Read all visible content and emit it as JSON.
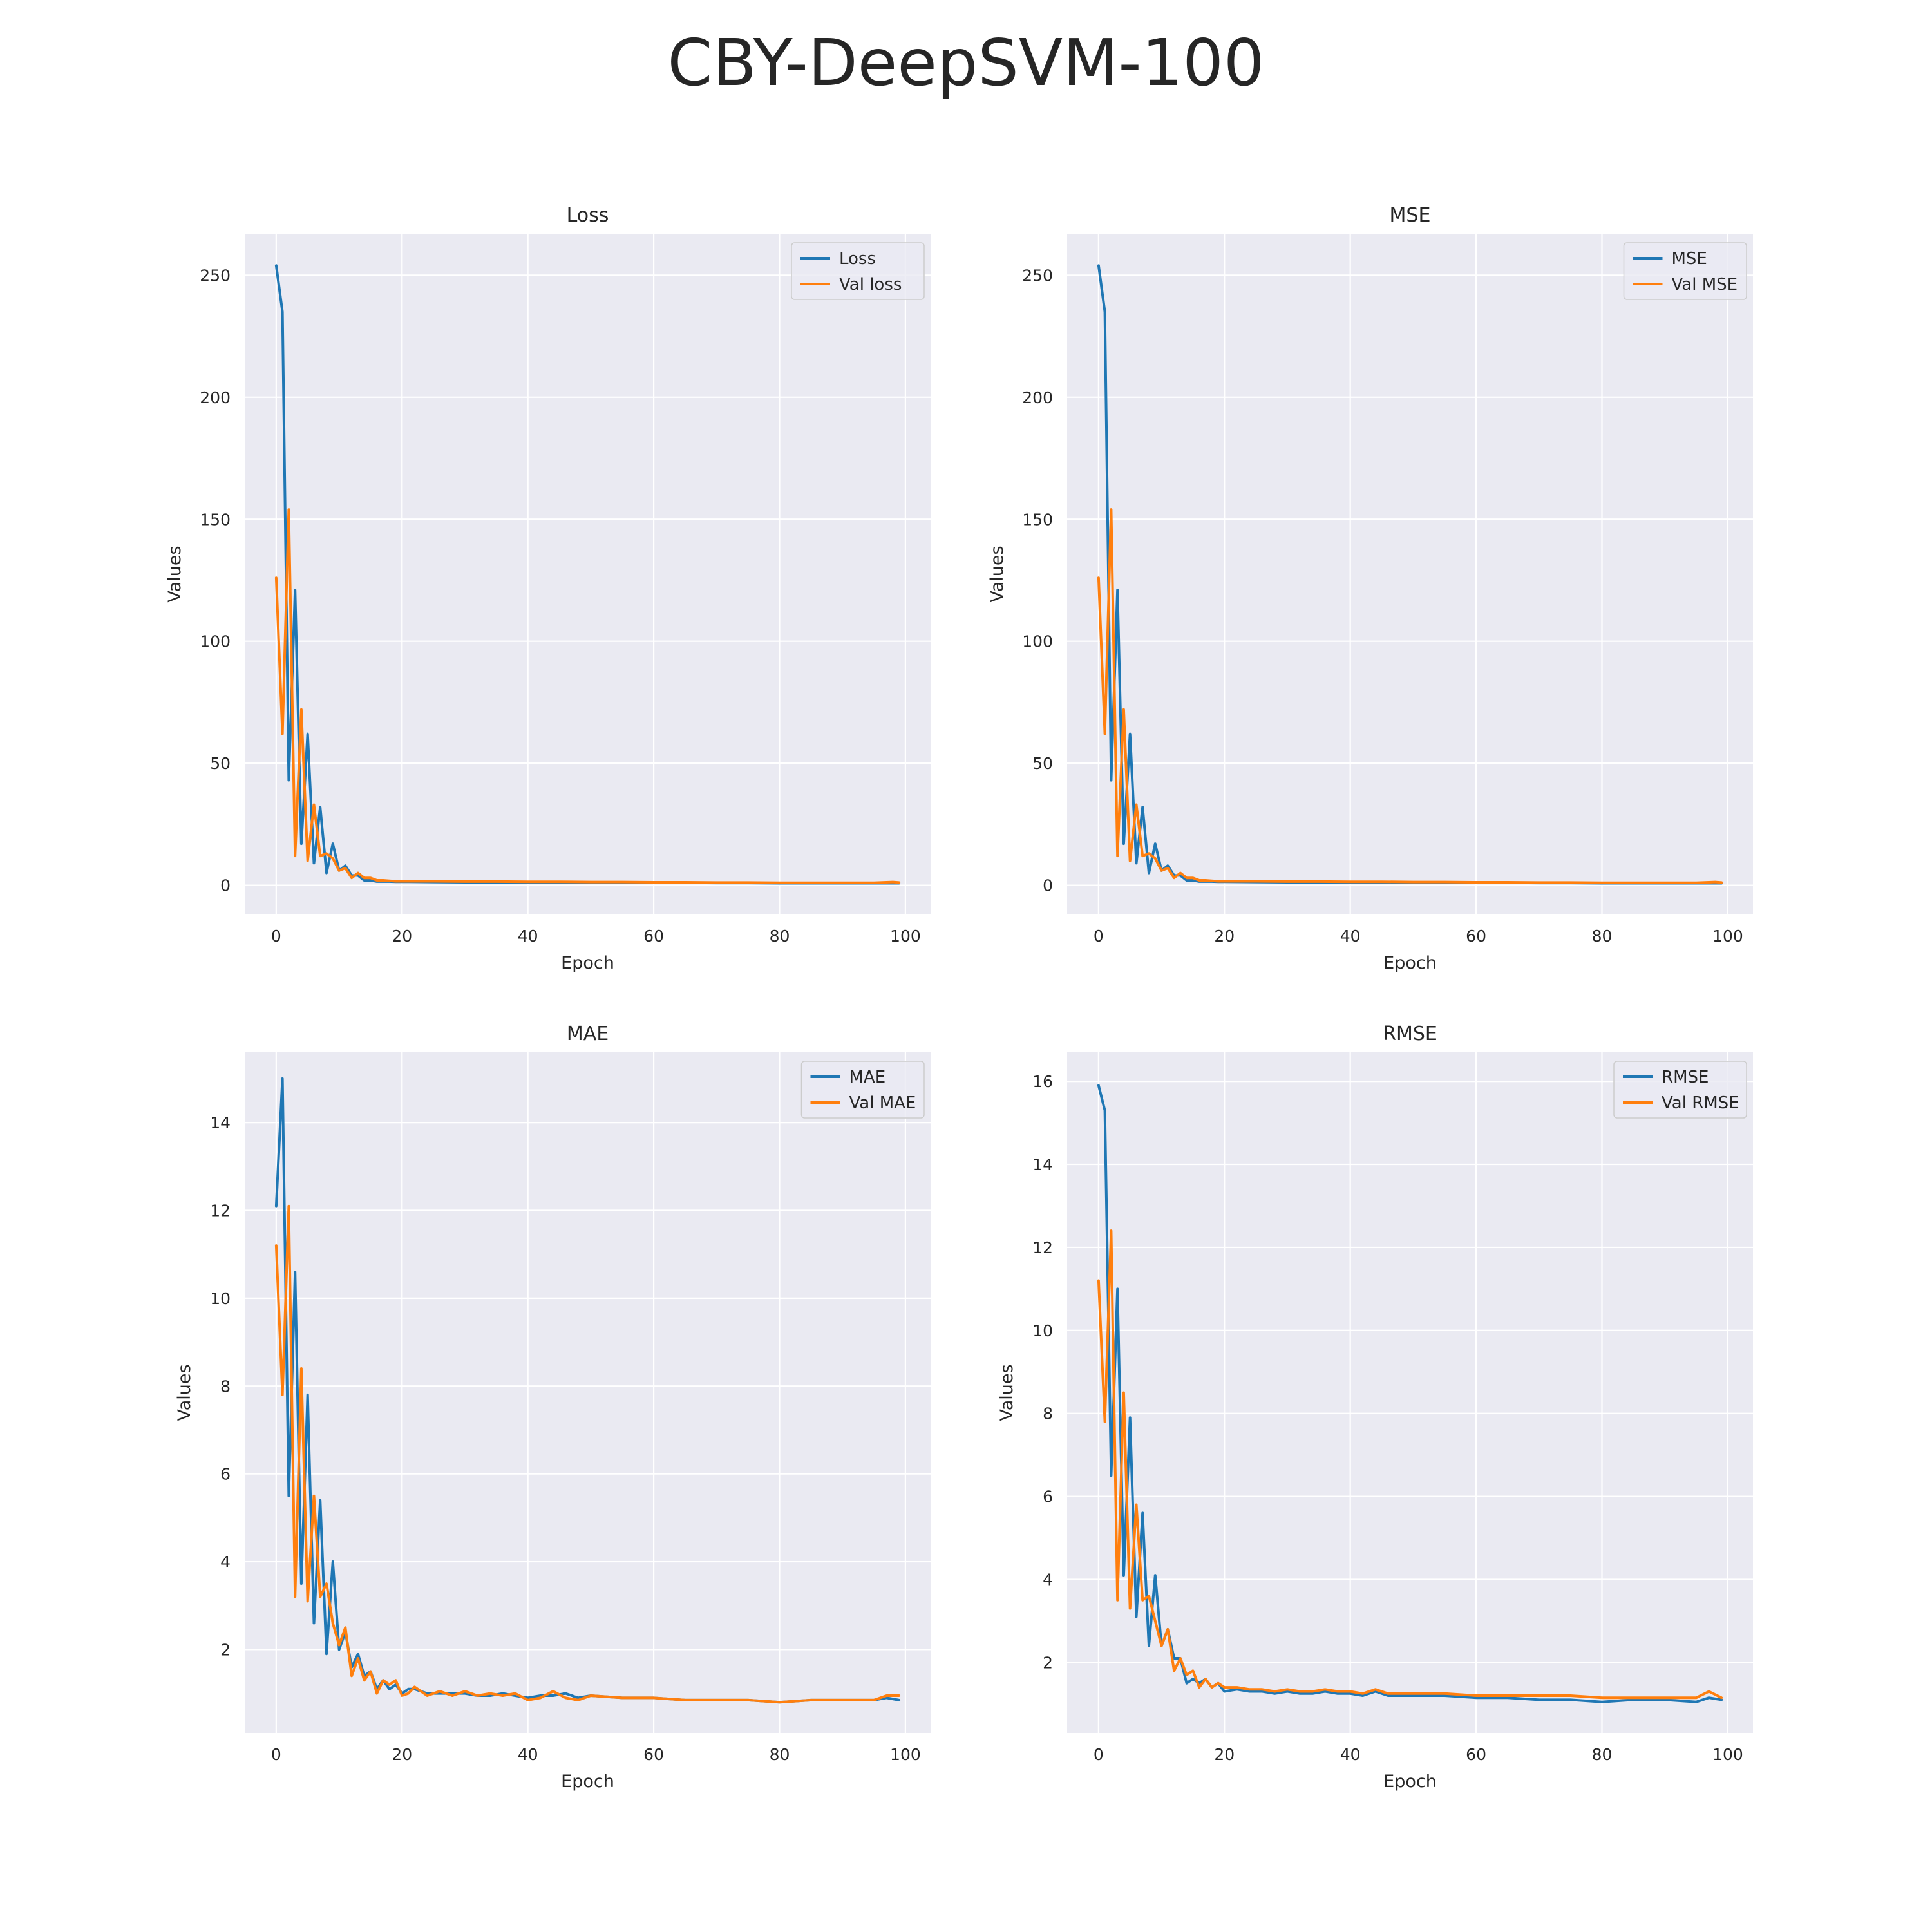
{
  "suptitle": "CBY-DeepSVM-100",
  "colors": {
    "train": "#1f77b4",
    "val": "#ff7f0e",
    "plot_bg": "#eaeaf2",
    "grid": "#ffffff"
  },
  "chart_data": [
    {
      "type": "line",
      "title": "Loss",
      "xlabel": "Epoch",
      "ylabel": "Values",
      "xlim": [
        -5,
        104
      ],
      "ylim": [
        -12,
        267
      ],
      "xticks": [
        0,
        20,
        40,
        60,
        80,
        100
      ],
      "yticks": [
        0,
        50,
        100,
        150,
        200,
        250
      ],
      "legend": "upper-right",
      "grid": true,
      "series": [
        {
          "name": "Loss",
          "color": "#1f77b4",
          "x": [
            0,
            1,
            2,
            3,
            4,
            5,
            6,
            7,
            8,
            9,
            10,
            11,
            12,
            13,
            14,
            15,
            16,
            17,
            18,
            19,
            20,
            25,
            30,
            35,
            40,
            45,
            50,
            55,
            60,
            65,
            70,
            75,
            80,
            85,
            90,
            95,
            99
          ],
          "y": [
            254,
            235,
            43,
            121,
            17,
            62,
            9,
            32,
            5,
            17,
            6,
            8,
            4,
            4,
            2,
            2,
            1.5,
            1.5,
            1.5,
            1.4,
            1.4,
            1.3,
            1.2,
            1.2,
            1.1,
            1.1,
            1.1,
            1.0,
            1.0,
            1.0,
            0.9,
            0.9,
            0.8,
            0.8,
            0.8,
            0.8,
            0.8
          ]
        },
        {
          "name": "Val loss",
          "color": "#ff7f0e",
          "x": [
            0,
            1,
            2,
            3,
            4,
            5,
            6,
            7,
            8,
            9,
            10,
            11,
            12,
            13,
            14,
            15,
            16,
            17,
            18,
            19,
            20,
            25,
            30,
            35,
            40,
            45,
            50,
            55,
            60,
            65,
            70,
            75,
            80,
            85,
            90,
            95,
            98,
            99
          ],
          "y": [
            126,
            62,
            154,
            12,
            72,
            10,
            33,
            12,
            13,
            11,
            6,
            7,
            3,
            5,
            3,
            3,
            2,
            2,
            1.8,
            1.6,
            1.6,
            1.6,
            1.5,
            1.5,
            1.4,
            1.4,
            1.3,
            1.3,
            1.2,
            1.2,
            1.1,
            1.1,
            1.0,
            1.0,
            1.0,
            1.0,
            1.3,
            1.1
          ]
        }
      ]
    },
    {
      "type": "line",
      "title": "MSE",
      "xlabel": "Epoch",
      "ylabel": "Values",
      "xlim": [
        -5,
        104
      ],
      "ylim": [
        -12,
        267
      ],
      "xticks": [
        0,
        20,
        40,
        60,
        80,
        100
      ],
      "yticks": [
        0,
        50,
        100,
        150,
        200,
        250
      ],
      "legend": "upper-right",
      "grid": true,
      "series": [
        {
          "name": "MSE",
          "color": "#1f77b4",
          "x": [
            0,
            1,
            2,
            3,
            4,
            5,
            6,
            7,
            8,
            9,
            10,
            11,
            12,
            13,
            14,
            15,
            16,
            17,
            18,
            19,
            20,
            25,
            30,
            35,
            40,
            45,
            50,
            55,
            60,
            65,
            70,
            75,
            80,
            85,
            90,
            95,
            99
          ],
          "y": [
            254,
            235,
            43,
            121,
            17,
            62,
            9,
            32,
            5,
            17,
            6,
            8,
            4,
            4,
            2,
            2,
            1.5,
            1.5,
            1.5,
            1.4,
            1.4,
            1.3,
            1.2,
            1.2,
            1.1,
            1.1,
            1.1,
            1.0,
            1.0,
            1.0,
            0.9,
            0.9,
            0.8,
            0.8,
            0.8,
            0.8,
            0.8
          ]
        },
        {
          "name": "Val MSE",
          "color": "#ff7f0e",
          "x": [
            0,
            1,
            2,
            3,
            4,
            5,
            6,
            7,
            8,
            9,
            10,
            11,
            12,
            13,
            14,
            15,
            16,
            17,
            18,
            19,
            20,
            25,
            30,
            35,
            40,
            45,
            50,
            55,
            60,
            65,
            70,
            75,
            80,
            85,
            90,
            95,
            98,
            99
          ],
          "y": [
            126,
            62,
            154,
            12,
            72,
            10,
            33,
            12,
            13,
            11,
            6,
            7,
            3,
            5,
            3,
            3,
            2,
            2,
            1.8,
            1.6,
            1.6,
            1.6,
            1.5,
            1.5,
            1.4,
            1.4,
            1.3,
            1.3,
            1.2,
            1.2,
            1.1,
            1.1,
            1.0,
            1.0,
            1.0,
            1.0,
            1.3,
            1.1
          ]
        }
      ]
    },
    {
      "type": "line",
      "title": "MAE",
      "xlabel": "Epoch",
      "ylabel": "Values",
      "xlim": [
        -5,
        104
      ],
      "ylim": [
        0.1,
        15.6
      ],
      "xticks": [
        0,
        20,
        40,
        60,
        80,
        100
      ],
      "yticks": [
        2,
        4,
        6,
        8,
        10,
        12,
        14
      ],
      "legend": "upper-right",
      "grid": true,
      "series": [
        {
          "name": "MAE",
          "color": "#1f77b4",
          "x": [
            0,
            1,
            2,
            3,
            4,
            5,
            6,
            7,
            8,
            9,
            10,
            11,
            12,
            13,
            14,
            15,
            16,
            17,
            18,
            19,
            20,
            21,
            22,
            24,
            26,
            28,
            30,
            32,
            34,
            36,
            38,
            40,
            42,
            44,
            46,
            48,
            50,
            55,
            60,
            65,
            70,
            75,
            80,
            85,
            90,
            95,
            97,
            99
          ],
          "y": [
            12.1,
            15.0,
            5.5,
            10.6,
            3.5,
            7.8,
            2.6,
            5.4,
            1.9,
            4.0,
            2.0,
            2.4,
            1.6,
            1.9,
            1.4,
            1.5,
            1.1,
            1.3,
            1.1,
            1.2,
            1.0,
            1.1,
            1.1,
            1.0,
            1.0,
            1.0,
            1.0,
            0.95,
            0.95,
            1.0,
            0.95,
            0.9,
            0.95,
            0.95,
            1.0,
            0.9,
            0.95,
            0.9,
            0.9,
            0.85,
            0.85,
            0.85,
            0.8,
            0.85,
            0.85,
            0.85,
            0.9,
            0.85
          ]
        },
        {
          "name": "Val MAE",
          "color": "#ff7f0e",
          "x": [
            0,
            1,
            2,
            3,
            4,
            5,
            6,
            7,
            8,
            9,
            10,
            11,
            12,
            13,
            14,
            15,
            16,
            17,
            18,
            19,
            20,
            21,
            22,
            24,
            26,
            28,
            30,
            32,
            34,
            36,
            38,
            40,
            42,
            44,
            46,
            48,
            50,
            55,
            60,
            65,
            70,
            75,
            80,
            85,
            90,
            95,
            97,
            99
          ],
          "y": [
            11.2,
            7.8,
            12.1,
            3.2,
            8.4,
            3.1,
            5.5,
            3.2,
            3.5,
            2.6,
            2.1,
            2.5,
            1.4,
            1.8,
            1.3,
            1.5,
            1.0,
            1.3,
            1.2,
            1.3,
            0.95,
            1.0,
            1.15,
            0.95,
            1.05,
            0.95,
            1.05,
            0.95,
            1.0,
            0.95,
            1.0,
            0.85,
            0.9,
            1.05,
            0.9,
            0.85,
            0.95,
            0.9,
            0.9,
            0.85,
            0.85,
            0.85,
            0.8,
            0.85,
            0.85,
            0.85,
            0.95,
            0.95
          ]
        }
      ]
    },
    {
      "type": "line",
      "title": "RMSE",
      "xlabel": "Epoch",
      "ylabel": "Values",
      "xlim": [
        -5,
        104
      ],
      "ylim": [
        0.3,
        16.7
      ],
      "xticks": [
        0,
        20,
        40,
        60,
        80,
        100
      ],
      "yticks": [
        2,
        4,
        6,
        8,
        10,
        12,
        14,
        16
      ],
      "legend": "upper-right",
      "grid": true,
      "series": [
        {
          "name": "RMSE",
          "color": "#1f77b4",
          "x": [
            0,
            1,
            2,
            3,
            4,
            5,
            6,
            7,
            8,
            9,
            10,
            11,
            12,
            13,
            14,
            15,
            16,
            17,
            18,
            19,
            20,
            22,
            24,
            26,
            28,
            30,
            32,
            34,
            36,
            38,
            40,
            42,
            44,
            46,
            48,
            50,
            55,
            60,
            65,
            70,
            75,
            80,
            85,
            90,
            95,
            97,
            99
          ],
          "y": [
            15.9,
            15.3,
            6.5,
            11.0,
            4.1,
            7.9,
            3.1,
            5.6,
            2.4,
            4.1,
            2.4,
            2.8,
            2.1,
            2.1,
            1.5,
            1.6,
            1.5,
            1.6,
            1.4,
            1.5,
            1.3,
            1.35,
            1.3,
            1.3,
            1.25,
            1.3,
            1.25,
            1.25,
            1.3,
            1.25,
            1.25,
            1.2,
            1.3,
            1.2,
            1.2,
            1.2,
            1.2,
            1.15,
            1.15,
            1.1,
            1.1,
            1.05,
            1.1,
            1.1,
            1.05,
            1.15,
            1.1
          ]
        },
        {
          "name": "Val RMSE",
          "color": "#ff7f0e",
          "x": [
            0,
            1,
            2,
            3,
            4,
            5,
            6,
            7,
            8,
            9,
            10,
            11,
            12,
            13,
            14,
            15,
            16,
            17,
            18,
            19,
            20,
            22,
            24,
            26,
            28,
            30,
            32,
            34,
            36,
            38,
            40,
            42,
            44,
            46,
            48,
            50,
            55,
            60,
            65,
            70,
            75,
            80,
            85,
            90,
            95,
            97,
            99
          ],
          "y": [
            11.2,
            7.8,
            12.4,
            3.5,
            8.5,
            3.3,
            5.8,
            3.5,
            3.6,
            3.0,
            2.4,
            2.8,
            1.8,
            2.1,
            1.7,
            1.8,
            1.4,
            1.6,
            1.4,
            1.5,
            1.4,
            1.4,
            1.35,
            1.35,
            1.3,
            1.35,
            1.3,
            1.3,
            1.35,
            1.3,
            1.3,
            1.25,
            1.35,
            1.25,
            1.25,
            1.25,
            1.25,
            1.2,
            1.2,
            1.2,
            1.2,
            1.15,
            1.15,
            1.15,
            1.15,
            1.3,
            1.15
          ]
        }
      ]
    }
  ]
}
